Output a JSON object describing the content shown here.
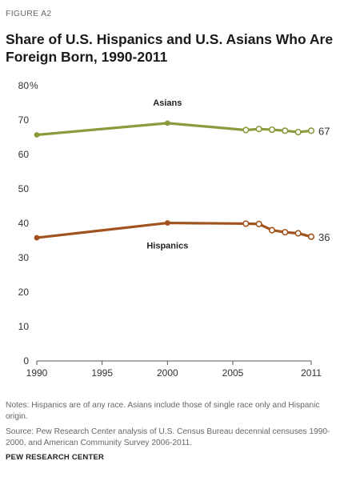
{
  "figure_label": "FIGURE A2",
  "title": "Share of U.S. Hispanics and U.S. Asians Who Are Foreign Born, 1990-2011",
  "y_unit": "%",
  "notes": "Notes: Hispanics are of any race. Asians include those of single race only and Hispanic origin.",
  "source": "Source: Pew Research Center analysis of U.S. Census Bureau decennial censuses 1990-2000, and American Community Survey 2006-2011.",
  "organization": "PEW RESEARCH CENTER",
  "chart_data": {
    "type": "line",
    "title": "Share of U.S. Hispanics and U.S. Asians Who Are Foreign Born, 1990-2011",
    "xlabel": "",
    "ylabel": "",
    "xlim": [
      1990,
      2011
    ],
    "ylim": [
      0,
      80
    ],
    "x_ticks": [
      1990,
      1995,
      2000,
      2005,
      2011
    ],
    "y_ticks": [
      0,
      10,
      20,
      30,
      40,
      50,
      60,
      70,
      80
    ],
    "grid": false,
    "series": [
      {
        "name": "Asians",
        "color": "#8a9a3c",
        "x": [
          1990,
          2000,
          2006,
          2007,
          2008,
          2009,
          2010,
          2011
        ],
        "values": [
          65.7,
          69.1,
          67.1,
          67.4,
          67.2,
          66.9,
          66.5,
          66.9
        ],
        "end_label": "67"
      },
      {
        "name": "Hispanics",
        "color": "#a0531d",
        "x": [
          1990,
          2000,
          2006,
          2007,
          2008,
          2009,
          2010,
          2011
        ],
        "values": [
          35.8,
          40.1,
          39.9,
          39.8,
          38.0,
          37.4,
          37.1,
          36.1
        ],
        "end_label": "36"
      }
    ]
  }
}
